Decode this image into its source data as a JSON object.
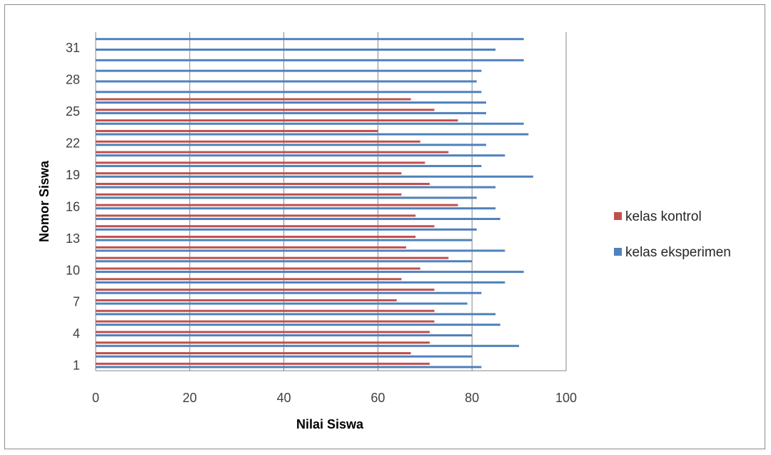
{
  "chart_data": {
    "type": "bar",
    "orientation": "horizontal",
    "xlabel": "Nilai Siswa",
    "ylabel": "Nomor Siswa",
    "xlim": [
      0,
      100
    ],
    "xticks": [
      0,
      20,
      40,
      60,
      80,
      100
    ],
    "yticks_shown": [
      1,
      4,
      7,
      10,
      13,
      16,
      19,
      22,
      25,
      28,
      31
    ],
    "categories": [
      1,
      2,
      3,
      4,
      5,
      6,
      7,
      8,
      9,
      10,
      11,
      12,
      13,
      14,
      15,
      16,
      17,
      18,
      19,
      20,
      21,
      22,
      23,
      24,
      25,
      26,
      27,
      28,
      29,
      30,
      31,
      32
    ],
    "grid": "vertical",
    "legend_position": "right",
    "series": [
      {
        "name": "kelas eksperimen",
        "color": "#4f81bd",
        "values": [
          82,
          80,
          90,
          80,
          86,
          85,
          79,
          82,
          87,
          91,
          80,
          87,
          80,
          81,
          86,
          85,
          81,
          85,
          93,
          82,
          87,
          83,
          92,
          91,
          83,
          83,
          82,
          81,
          82,
          91,
          85,
          91
        ]
      },
      {
        "name": "kelas kontrol",
        "color": "#c0504d",
        "values": [
          71,
          67,
          71,
          71,
          72,
          72,
          64,
          72,
          65,
          69,
          75,
          66,
          68,
          72,
          68,
          77,
          65,
          71,
          65,
          70,
          75,
          69,
          60,
          77,
          72,
          67,
          null,
          null,
          null,
          null,
          null,
          null
        ]
      }
    ]
  }
}
